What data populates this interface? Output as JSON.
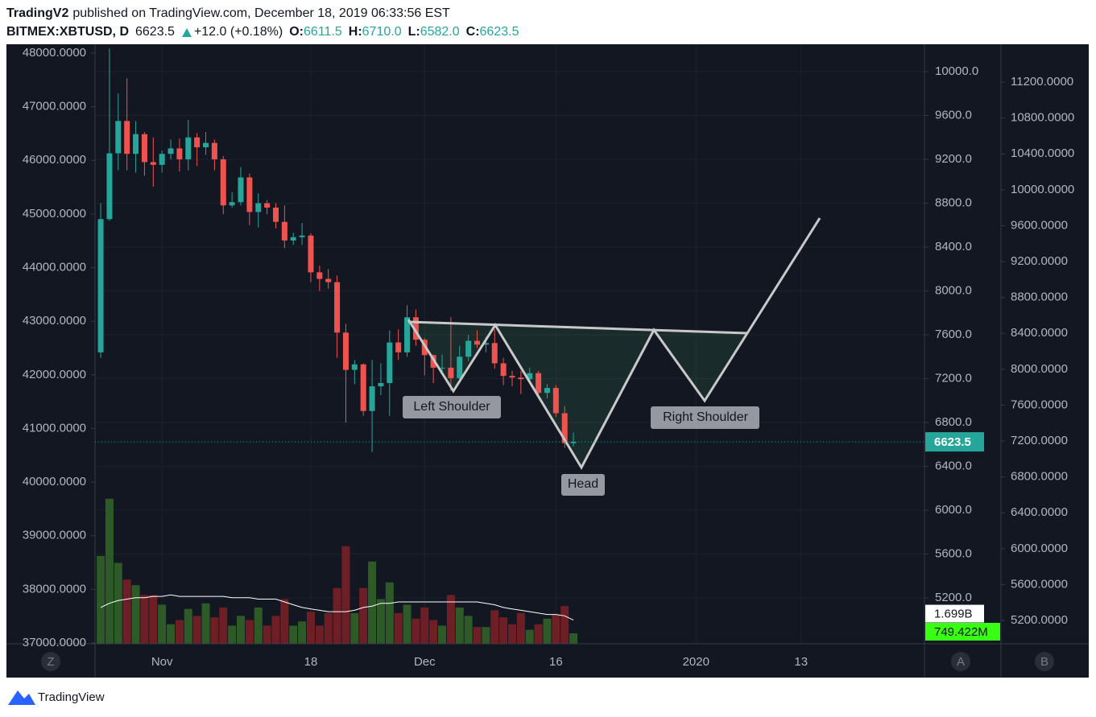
{
  "header": {
    "author": "TradingV2",
    "published": "published on TradingView.com, December 18, 2019 06:33:56 EST",
    "symbol": "BITMEX:XBTUSD, D",
    "last": "6623.5",
    "change": "+12.0 (+0.18%)",
    "o_label": "O:",
    "o": "6611.5",
    "h_label": "H:",
    "h": "6710.0",
    "l_label": "L:",
    "l": "6582.0",
    "c_label": "C:",
    "c": "6623.5"
  },
  "toolbar": {
    "left": "Z",
    "right_a": "A",
    "right_b": "B"
  },
  "footer": {
    "brand": "TradingView"
  },
  "chart_data": {
    "type": "candlestick",
    "x": [
      0,
      1,
      2,
      3,
      4,
      5,
      6,
      7,
      8,
      9,
      10,
      11,
      12,
      13,
      14,
      15,
      16,
      17,
      18,
      19,
      20,
      21,
      22,
      23,
      24,
      25,
      26,
      27,
      28,
      29,
      30,
      31,
      32,
      33,
      34,
      35,
      36,
      37,
      38,
      39,
      40,
      41,
      42,
      43,
      44,
      45,
      46,
      47,
      48,
      49,
      50,
      51,
      52,
      53,
      54
    ],
    "open": [
      7440,
      8655,
      9255,
      9550,
      9250,
      9430,
      9175,
      9150,
      9250,
      9300,
      9200,
      9400,
      9310,
      9350,
      9200,
      8780,
      8810,
      9035,
      8720,
      8800,
      8760,
      8630,
      8460,
      8490,
      8505,
      8170,
      8110,
      8080,
      7620,
      7280,
      7330,
      6905,
      7130,
      7160,
      7530,
      7440,
      7760,
      7555,
      7415,
      7300,
      7300,
      7205,
      7400,
      7545,
      7510,
      7525,
      7340,
      7225,
      7210,
      7195,
      7250,
      7070,
      7115,
      6885,
      6611.5
    ],
    "high": [
      8800,
      10210,
      9800,
      9940,
      9550,
      9450,
      9400,
      9280,
      9380,
      9390,
      9560,
      9440,
      9450,
      9380,
      9230,
      8900,
      9130,
      9070,
      8890,
      8830,
      8800,
      8780,
      8530,
      8620,
      8525,
      8230,
      8200,
      8140,
      7700,
      7370,
      7340,
      7370,
      7340,
      7640,
      7650,
      7870,
      7830,
      7570,
      7420,
      7420,
      7760,
      7500,
      7600,
      7640,
      7580,
      7650,
      7390,
      7270,
      7270,
      7300,
      7270,
      7150,
      7140,
      6950,
      6710
    ],
    "low": [
      7390,
      8640,
      9100,
      9100,
      9080,
      9050,
      8950,
      9080,
      9200,
      9090,
      9100,
      9140,
      9240,
      9100,
      8700,
      8760,
      8780,
      8600,
      8580,
      8700,
      8570,
      8390,
      8420,
      8420,
      8080,
      8000,
      8020,
      7390,
      6800,
      7150,
      6860,
      6530,
      7050,
      6860,
      7370,
      7400,
      7500,
      7230,
      7160,
      7250,
      7090,
      7160,
      7360,
      7480,
      7440,
      7290,
      7140,
      7130,
      7060,
      7180,
      7020,
      7020,
      6850,
      6570,
      6582
    ],
    "close": [
      8655,
      9255,
      9550,
      9250,
      9430,
      9175,
      9150,
      9250,
      9300,
      9200,
      9400,
      9310,
      9350,
      9200,
      8780,
      8810,
      9035,
      8720,
      8800,
      8760,
      8630,
      8460,
      8490,
      8505,
      8170,
      8110,
      8080,
      7620,
      7280,
      7330,
      6905,
      7130,
      7160,
      7530,
      7440,
      7760,
      7555,
      7415,
      7300,
      7300,
      7205,
      7400,
      7545,
      7510,
      7525,
      7340,
      7225,
      7210,
      7195,
      7250,
      7070,
      7115,
      6885,
      6612,
      6623.5
    ],
    "up_color": "#26a69a",
    "down_color": "#ef5350",
    "xlim": [
      -0.65,
      94.1
    ],
    "xticks": [
      {
        "value": 7,
        "label": "Nov"
      },
      {
        "value": 24,
        "label": "18"
      },
      {
        "value": 37,
        "label": "Dec"
      },
      {
        "value": 52,
        "label": "16"
      },
      {
        "value": 68,
        "label": "2020"
      },
      {
        "value": 80,
        "label": "13"
      }
    ],
    "ylim": [
      4782,
      10213
    ],
    "yticks": [
      {
        "value": 10000,
        "label": "10000.0"
      },
      {
        "value": 9600,
        "label": "9600.0"
      },
      {
        "value": 9200,
        "label": "9200.0"
      },
      {
        "value": 8800,
        "label": "8800.0"
      },
      {
        "value": 8400,
        "label": "8400.0"
      },
      {
        "value": 8000,
        "label": "8000.0"
      },
      {
        "value": 7600,
        "label": "7600.0"
      },
      {
        "value": 7200,
        "label": "7200.0"
      },
      {
        "value": 6800,
        "label": "6800.0"
      },
      {
        "value": 6400,
        "label": "6400.0"
      },
      {
        "value": 6000,
        "label": "6000.0"
      },
      {
        "value": 5600,
        "label": "5600.0"
      },
      {
        "value": 5200,
        "label": "5200.0"
      }
    ],
    "y2lim": [
      36985,
      48090
    ],
    "y2ticks": [
      {
        "value": 48000,
        "label": "48000.0000"
      },
      {
        "value": 47000,
        "label": "47000.0000"
      },
      {
        "value": 46000,
        "label": "46000.0000"
      },
      {
        "value": 45000,
        "label": "45000.0000"
      },
      {
        "value": 44000,
        "label": "44000.0000"
      },
      {
        "value": 43000,
        "label": "43000.0000"
      },
      {
        "value": 42000,
        "label": "42000.0000"
      },
      {
        "value": 41000,
        "label": "41000.0000"
      },
      {
        "value": 40000,
        "label": "40000.0000"
      },
      {
        "value": 39000,
        "label": "39000.0000"
      },
      {
        "value": 38000,
        "label": "38000.0000"
      },
      {
        "value": 37000,
        "label": "37000.0000"
      }
    ],
    "y3lim": [
      4940,
      11577
    ],
    "y3ticks": [
      {
        "value": 11200,
        "label": "11200.0000"
      },
      {
        "value": 10800,
        "label": "10800.0000"
      },
      {
        "value": 10400,
        "label": "10400.0000"
      },
      {
        "value": 10000,
        "label": "10000.0000"
      },
      {
        "value": 9600,
        "label": "9600.0000"
      },
      {
        "value": 9200,
        "label": "9200.0000"
      },
      {
        "value": 8800,
        "label": "8800.0000"
      },
      {
        "value": 8400,
        "label": "8400.0000"
      },
      {
        "value": 8000,
        "label": "8000.0000"
      },
      {
        "value": 7600,
        "label": "7600.0000"
      },
      {
        "value": 7200,
        "label": "7200.0000"
      },
      {
        "value": 6800,
        "label": "6800.0000"
      },
      {
        "value": 6400,
        "label": "6400.0000"
      },
      {
        "value": 6000,
        "label": "6000.0000"
      },
      {
        "value": 5600,
        "label": "5600.0000"
      },
      {
        "value": 5200,
        "label": "5200.0000"
      }
    ],
    "grid": true,
    "last_price": 6623.5,
    "last_price_label": "6623.5",
    "last_price_color": "#26a69a",
    "volume": {
      "values": [
        6.3,
        10.4,
        5.8,
        4.6,
        4.2,
        3.5,
        3.5,
        2.8,
        1.4,
        1.7,
        2.5,
        2.0,
        2.9,
        1.9,
        2.6,
        1.3,
        2.0,
        1.7,
        2.6,
        1.3,
        2.0,
        3.2,
        1.3,
        1.6,
        2.3,
        1.3,
        2.2,
        4.0,
        7.0,
        2.2,
        4.0,
        5.9,
        3.2,
        4.4,
        2.2,
        2.8,
        1.8,
        2.6,
        1.7,
        1.3,
        3.5,
        2.6,
        2.0,
        1.2,
        1.2,
        2.4,
        1.9,
        1.4,
        2.2,
        1.0,
        1.4,
        1.8,
        2.1,
        2.7,
        0.749422
      ],
      "ma": [
        2.6,
        2.9,
        3.1,
        3.2,
        3.3,
        3.3,
        3.4,
        3.4,
        3.5,
        3.4,
        3.4,
        3.4,
        3.4,
        3.4,
        3.4,
        3.3,
        3.3,
        3.3,
        3.2,
        3.2,
        3.2,
        3.0,
        2.8,
        2.6,
        2.5,
        2.4,
        2.3,
        2.3,
        2.3,
        2.4,
        2.6,
        2.7,
        2.9,
        2.9,
        3.0,
        3.0,
        3.0,
        3.0,
        3.0,
        3.0,
        3.0,
        3.0,
        3.0,
        3.0,
        2.9,
        2.8,
        2.6,
        2.5,
        2.4,
        2.3,
        2.2,
        2.1,
        2.1,
        2.0,
        1.699
      ],
      "ylim": [
        0,
        12
      ],
      "up_color": "#2d5a27",
      "down_color": "#6e1f26",
      "ma_color": "#ffffff",
      "ma_label": "1.699B",
      "value_label": "749.422M",
      "value_label_color": "#39ff14"
    },
    "annotations": [
      "Left Shoulder",
      "Head",
      "Right Shoulder"
    ]
  }
}
